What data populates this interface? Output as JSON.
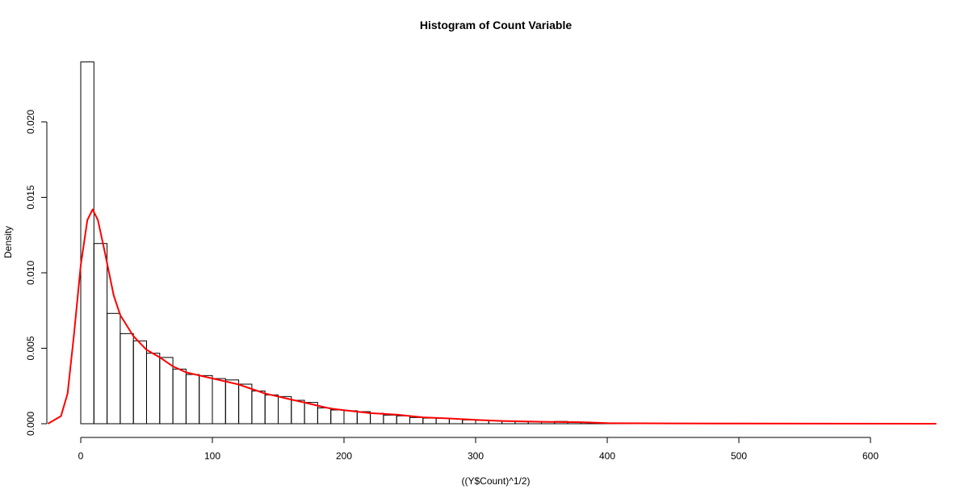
{
  "chart_data": {
    "type": "bar",
    "title": "Histogram of Count Variable",
    "xlabel": "((Y$Count)^1/2)",
    "ylabel": "Density",
    "xlim": [
      -25,
      650
    ],
    "ylim": [
      0,
      0.024
    ],
    "x_ticks": [
      0,
      100,
      200,
      300,
      400,
      500,
      600
    ],
    "y_ticks": [
      "0.000",
      "0.005",
      "0.010",
      "0.015",
      "0.020"
    ],
    "grid": false,
    "bin_width": 10,
    "bin_starts": [
      0,
      10,
      20,
      30,
      40,
      50,
      60,
      70,
      80,
      90,
      100,
      110,
      120,
      130,
      140,
      150,
      160,
      170,
      180,
      190,
      200,
      210,
      220,
      230,
      240,
      250,
      260,
      270,
      280,
      290,
      300,
      310,
      320,
      330,
      340,
      350,
      360,
      370,
      380,
      390,
      400,
      410,
      420,
      430,
      440,
      450,
      460,
      470,
      480,
      490,
      500,
      510,
      520,
      530
    ],
    "values": [
      0.02397,
      0.01194,
      0.00731,
      0.00597,
      0.00549,
      0.00467,
      0.00439,
      0.00362,
      0.00326,
      0.00319,
      0.00299,
      0.0029,
      0.00262,
      0.00217,
      0.00191,
      0.0018,
      0.00155,
      0.00141,
      0.00105,
      0.00091,
      0.00086,
      0.0008,
      0.00069,
      0.00057,
      0.00052,
      0.00041,
      0.00037,
      0.00036,
      0.00032,
      0.00025,
      0.00022,
      0.00019,
      0.00018,
      0.00013,
      0.00013,
      0.00011,
      0.00015,
      8e-05,
      8e-05,
      2e-05,
      1e-05,
      1e-05,
      1e-05,
      1e-05,
      1e-05,
      1e-05,
      1e-05,
      1e-05,
      1e-05,
      1e-05,
      0,
      1e-05,
      1e-05,
      1e-05
    ],
    "density_curve": {
      "color": "#ff0000",
      "x": [
        -25,
        -15,
        -10,
        -5,
        0,
        5,
        9,
        13,
        18,
        25,
        30,
        40,
        50,
        60,
        70,
        80,
        90,
        100,
        110,
        120,
        130,
        140,
        150,
        160,
        170,
        180,
        190,
        200,
        220,
        240,
        260,
        280,
        300,
        320,
        350,
        380,
        400,
        450,
        500,
        650
      ],
      "y": [
        0,
        0.0005,
        0.002,
        0.006,
        0.0105,
        0.0135,
        0.0142,
        0.0135,
        0.0115,
        0.0085,
        0.0072,
        0.0058,
        0.0049,
        0.0044,
        0.0038,
        0.0034,
        0.0032,
        0.003,
        0.0028,
        0.0026,
        0.0023,
        0.002,
        0.0018,
        0.0016,
        0.0014,
        0.0012,
        0.001,
        0.0009,
        0.0007,
        0.0006,
        0.00042,
        0.00035,
        0.00025,
        0.00018,
        0.00013,
        0.0001,
        4e-05,
        2e-05,
        1e-05,
        0
      ]
    }
  }
}
